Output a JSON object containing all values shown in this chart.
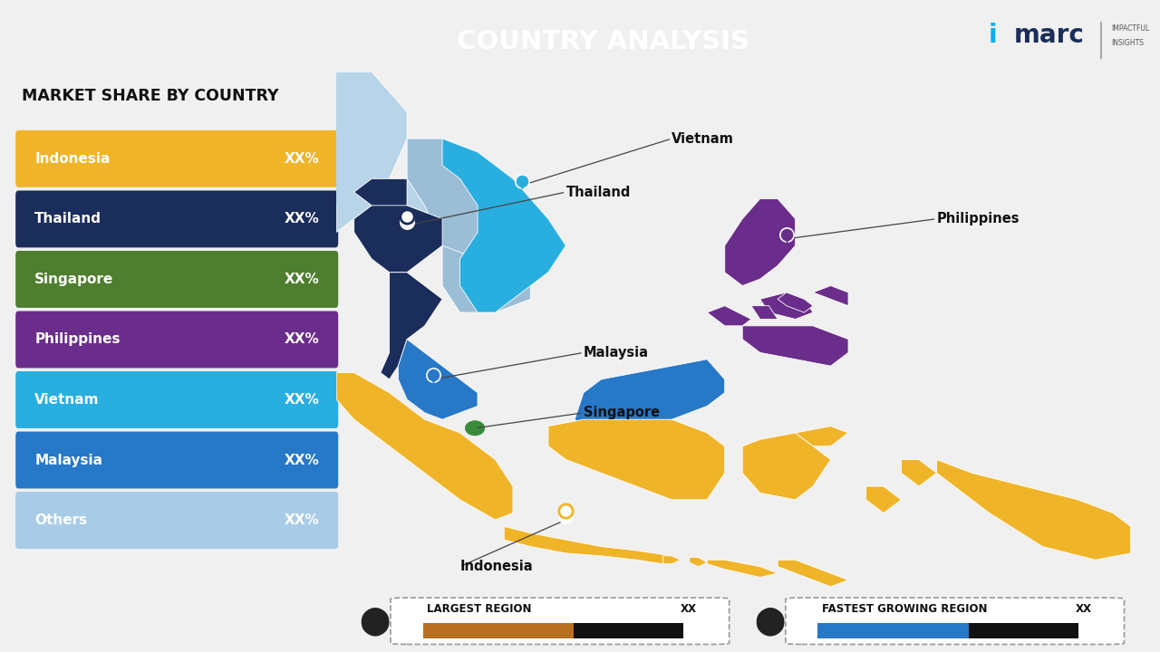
{
  "title": "COUNTRY ANALYSIS",
  "subtitle": "MARKET SHARE BY COUNTRY",
  "background_color": "#f0f0f0",
  "title_bg_color": "#1a3a5c",
  "title_text_color": "#ffffff",
  "legend_items": [
    {
      "label": "Indonesia",
      "color": "#f0b429",
      "value": "XX%"
    },
    {
      "label": "Thailand",
      "color": "#1b2d5b",
      "value": "XX%"
    },
    {
      "label": "Singapore",
      "color": "#4e7e2e",
      "value": "XX%"
    },
    {
      "label": "Philippines",
      "color": "#6b2d8b",
      "value": "XX%"
    },
    {
      "label": "Vietnam",
      "color": "#29aee0",
      "value": "XX%"
    },
    {
      "label": "Malaysia",
      "color": "#2878c8",
      "value": "XX%"
    },
    {
      "label": "Others",
      "color": "#a8cce8",
      "value": "XX%"
    }
  ],
  "color_indonesia": "#f0b429",
  "color_thailand": "#1b2d5b",
  "color_singapore": "#3a8a3a",
  "color_philippines": "#6b2d8b",
  "color_vietnam": "#29aee0",
  "color_malaysia": "#2878c8",
  "color_other_sea": "#9bbdd6",
  "color_light_sea": "#b8d4e8",
  "largest_region_color": "#b87020",
  "fastest_growing_color": "#2878c8",
  "imarc_cyan": "#00aeef",
  "imarc_dark": "#1b2d5b"
}
